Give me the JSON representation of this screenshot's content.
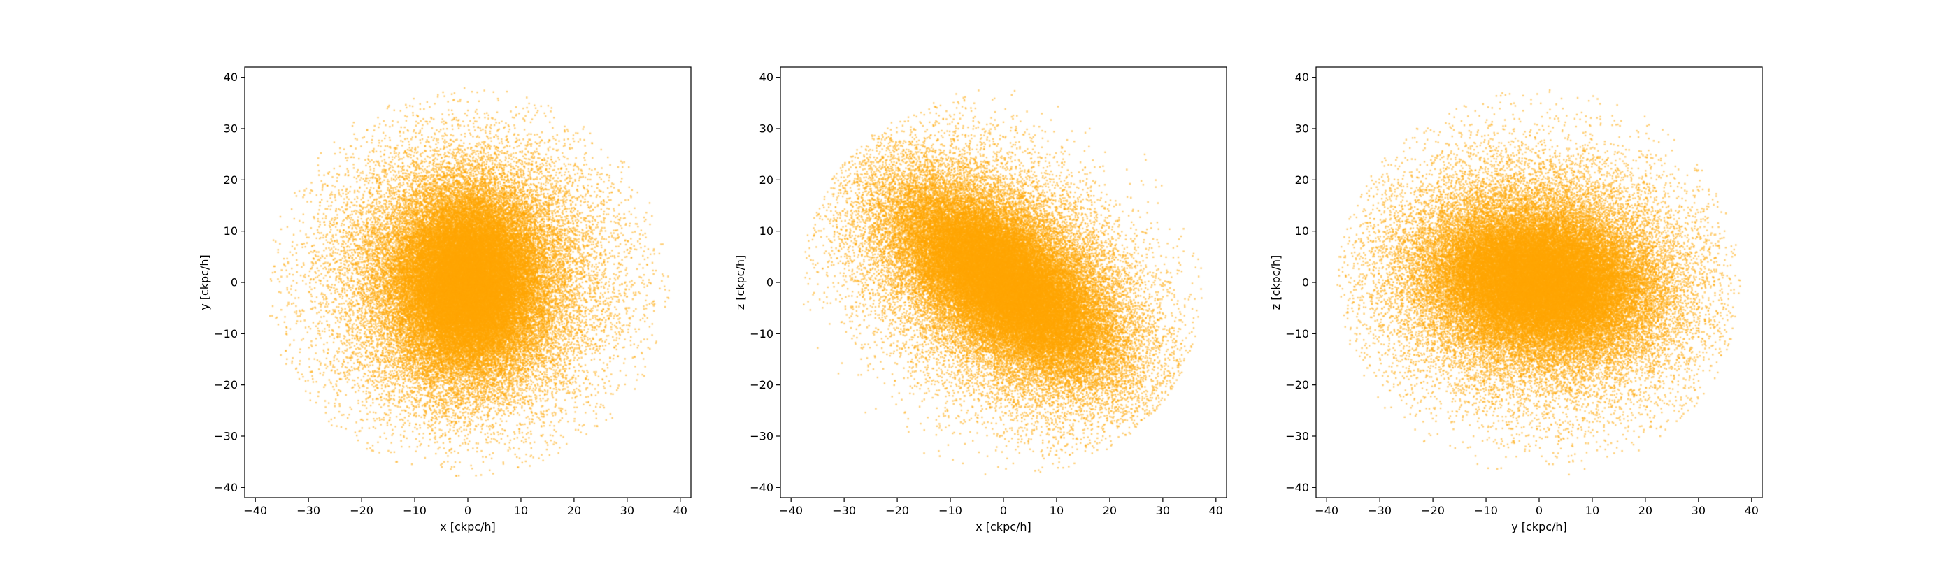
{
  "colors": {
    "points": "#FFA500",
    "frame": "#000000",
    "background": "#ffffff"
  },
  "chart_data": [
    {
      "type": "scatter",
      "xlabel": "x [ckpc/h]",
      "ylabel": "y [ckpc/h]",
      "xlim": [
        -42,
        42
      ],
      "ylim": [
        -42,
        42
      ],
      "xticks": [
        "−40",
        "−30",
        "−20",
        "−10",
        "0",
        "10",
        "20",
        "30",
        "40"
      ],
      "yticks": [
        "−40",
        "−30",
        "−20",
        "−10",
        "0",
        "10",
        "20",
        "30",
        "40"
      ],
      "grid": false,
      "distribution": {
        "n_points": 60000,
        "core_sigma": [
          6.5,
          8.5
        ],
        "halo_sigma": [
          13,
          13
        ],
        "max_radius": 38,
        "rotation_deg": 0,
        "center": [
          0,
          0
        ]
      }
    },
    {
      "type": "scatter",
      "xlabel": "x [ckpc/h]",
      "ylabel": "z [ckpc/h]",
      "xlim": [
        -42,
        42
      ],
      "ylim": [
        -42,
        42
      ],
      "xticks": [
        "−40",
        "−30",
        "−20",
        "−10",
        "0",
        "10",
        "20",
        "30",
        "40"
      ],
      "yticks": [
        "−40",
        "−30",
        "−20",
        "−10",
        "0",
        "10",
        "20",
        "30",
        "40"
      ],
      "grid": false,
      "distribution": {
        "n_points": 60000,
        "core_sigma": [
          12,
          5.5
        ],
        "halo_sigma": [
          16,
          10
        ],
        "max_radius": 38,
        "rotation_deg": -40,
        "center": [
          0,
          0
        ]
      }
    },
    {
      "type": "scatter",
      "xlabel": "y [ckpc/h]",
      "ylabel": "z [ckpc/h]",
      "xlim": [
        -42,
        42
      ],
      "ylim": [
        -42,
        42
      ],
      "xticks": [
        "−40",
        "−30",
        "−20",
        "−10",
        "0",
        "10",
        "20",
        "30",
        "40"
      ],
      "yticks": [
        "−40",
        "−30",
        "−20",
        "−10",
        "0",
        "10",
        "20",
        "30",
        "40"
      ],
      "grid": false,
      "distribution": {
        "n_points": 60000,
        "core_sigma": [
          10,
          6.5
        ],
        "halo_sigma": [
          15,
          12
        ],
        "max_radius": 38,
        "rotation_deg": -10,
        "center": [
          0,
          0
        ]
      }
    }
  ]
}
